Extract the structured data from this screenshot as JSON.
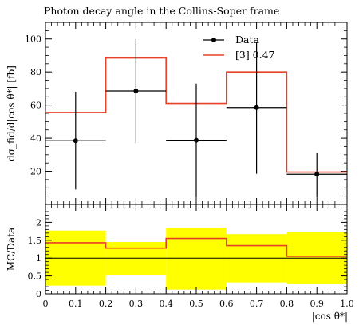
{
  "chart_data": [
    {
      "type": "step-histogram-with-errorbars",
      "title": "Photon decay angle in the Collins-Soper frame",
      "xlabel": "|cos θ*|",
      "ylabel": "dσ_fid/d|cos θ*| [fb]",
      "xlim": [
        0,
        1
      ],
      "ylim": [
        0,
        110
      ],
      "yticks": [
        "20",
        "40",
        "60",
        "80",
        "100"
      ],
      "legend_position": "top-right",
      "colors": {
        "data": "#000000",
        "prediction": "#e8412a"
      },
      "data": {
        "name": "Data",
        "points": [
          {
            "x": 0.1,
            "y": 38.5,
            "xerr": 0.1,
            "ylo": 9,
            "yhi": 68
          },
          {
            "x": 0.3,
            "y": 68.5,
            "xerr": 0.1,
            "ylo": 37,
            "yhi": 100
          },
          {
            "x": 0.5,
            "y": 38.8,
            "xerr": 0.1,
            "ylo": 4,
            "yhi": 73
          },
          {
            "x": 0.7,
            "y": 58.5,
            "xerr": 0.1,
            "ylo": 18.5,
            "yhi": 98
          },
          {
            "x": 0.9,
            "y": 18.2,
            "xerr": 0.1,
            "ylo": 4,
            "yhi": 31
          }
        ]
      },
      "prediction": {
        "name": "[3] 0.47",
        "edges": [
          0,
          0.2,
          0.4,
          0.6,
          0.8,
          1.0
        ],
        "values": [
          55.5,
          88.5,
          61,
          80,
          19.5
        ]
      }
    },
    {
      "type": "ratio",
      "ylabel": "MC/Data",
      "xlabel": "|cos θ*|",
      "xlim": [
        0,
        1
      ],
      "ylim": [
        0,
        2.5
      ],
      "yticks": [
        "0",
        "0.5",
        "1",
        "1.5",
        "2"
      ],
      "xticks": [
        "0",
        "0.1",
        "0.2",
        "0.3",
        "0.4",
        "0.5",
        "0.6",
        "0.7",
        "0.8",
        "0.9",
        "1.0"
      ],
      "colors": {
        "band": "#ffff00",
        "ratio": "#e8412a",
        "reference": "#000000"
      },
      "edges": [
        0,
        0.2,
        0.4,
        0.6,
        0.8,
        1.0
      ],
      "band_low": [
        0.23,
        0.52,
        0.12,
        0.32,
        0.27
      ],
      "band_high": [
        1.77,
        1.45,
        1.85,
        1.67,
        1.72
      ],
      "ratio": [
        1.43,
        1.28,
        1.55,
        1.35,
        1.05
      ],
      "reference": 1
    }
  ]
}
